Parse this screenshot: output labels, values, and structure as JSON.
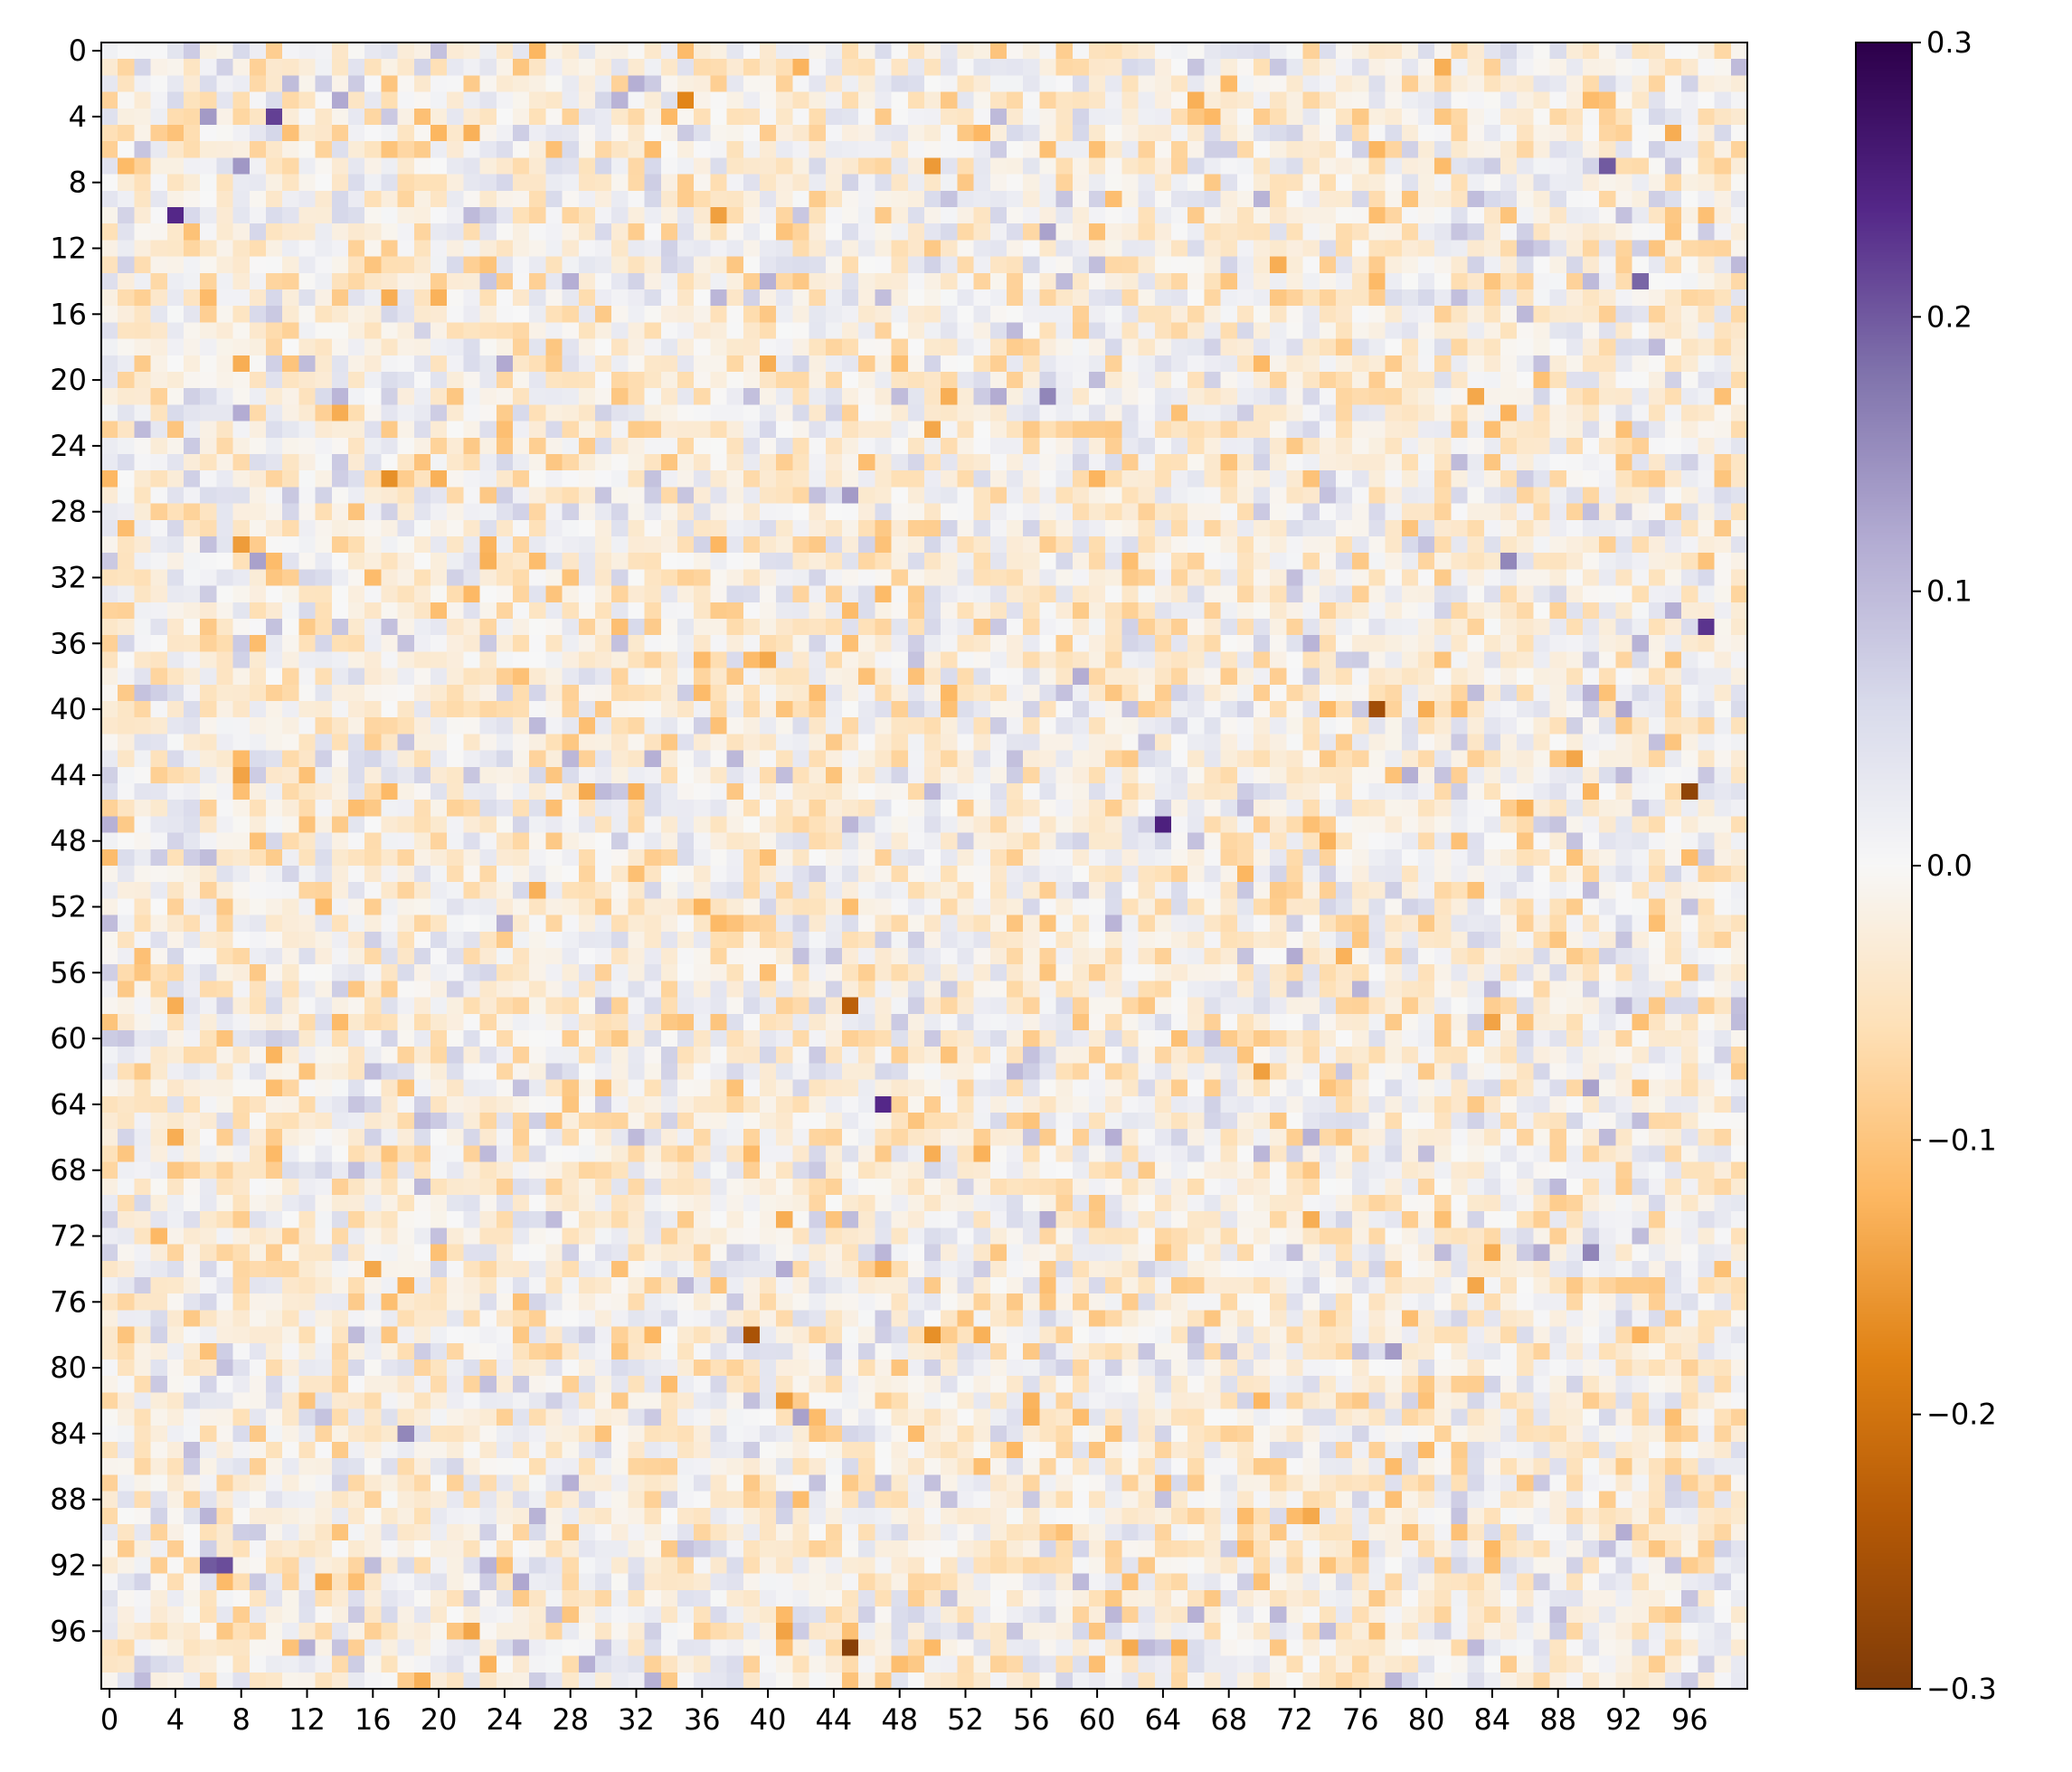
{
  "chart_data": {
    "type": "heatmap",
    "title": "",
    "xlabel": "",
    "ylabel": "",
    "rows": 100,
    "cols": 100,
    "x_ticks": [
      0,
      4,
      8,
      12,
      16,
      20,
      24,
      28,
      32,
      36,
      40,
      44,
      48,
      52,
      56,
      60,
      64,
      68,
      72,
      76,
      80,
      84,
      88,
      92,
      96
    ],
    "y_ticks": [
      0,
      4,
      8,
      12,
      16,
      20,
      24,
      28,
      32,
      36,
      40,
      44,
      48,
      52,
      56,
      60,
      64,
      68,
      72,
      76,
      80,
      84,
      88,
      92,
      96
    ],
    "colorbar": {
      "vmin": -0.3,
      "vmax": 0.3,
      "ticks": [
        0.3,
        0.2,
        0.1,
        0.0,
        -0.1,
        -0.2,
        -0.3
      ],
      "tick_labels": [
        "0.3",
        "0.2",
        "0.1",
        "0.0",
        "−0.1",
        "−0.2",
        "−0.3"
      ]
    },
    "colormap": "PuOr",
    "colormap_stops": [
      "#7f3b08",
      "#b35806",
      "#e08214",
      "#fdb863",
      "#fee0b6",
      "#f7f7f7",
      "#d8daeb",
      "#b2abd2",
      "#8073ac",
      "#542788",
      "#2d004b"
    ],
    "values_note": "",
    "value_stats": {
      "mean": 0.0,
      "std": 0.05
    },
    "notable_cells": [
      {
        "row": 4,
        "col": 10,
        "value": 0.22
      },
      {
        "row": 10,
        "col": 4,
        "value": 0.24
      },
      {
        "row": 40,
        "col": 77,
        "value": -0.26
      },
      {
        "row": 45,
        "col": 96,
        "value": -0.28
      },
      {
        "row": 47,
        "col": 64,
        "value": 0.25
      },
      {
        "row": 64,
        "col": 47,
        "value": 0.24
      },
      {
        "row": 78,
        "col": 39,
        "value": -0.25
      },
      {
        "row": 97,
        "col": 45,
        "value": -0.29
      },
      {
        "row": 35,
        "col": 97,
        "value": 0.23
      },
      {
        "row": 92,
        "col": 6,
        "value": 0.2
      },
      {
        "row": 92,
        "col": 7,
        "value": 0.21
      },
      {
        "row": 14,
        "col": 93,
        "value": 0.19
      },
      {
        "row": 7,
        "col": 91,
        "value": 0.2
      }
    ]
  }
}
